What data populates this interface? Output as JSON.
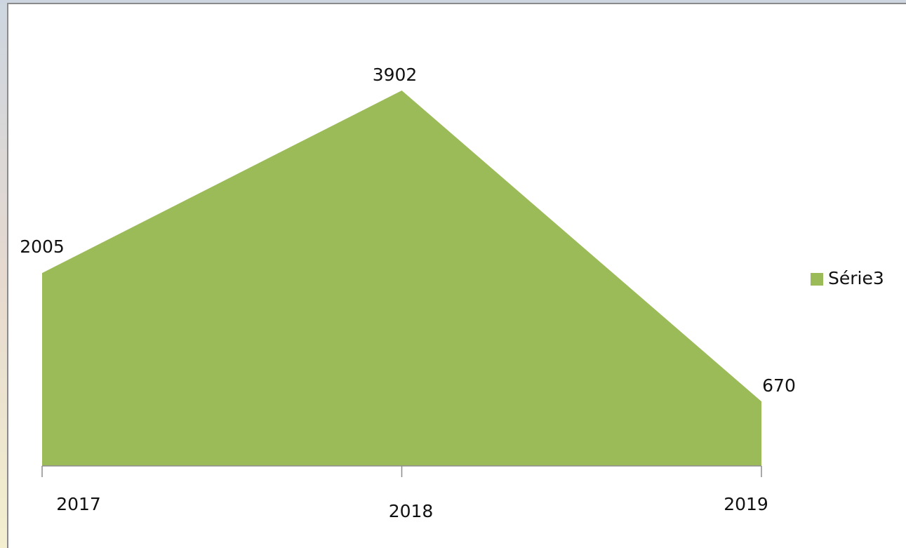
{
  "chart_data": {
    "type": "area",
    "categories": [
      "2017",
      "2018",
      "2019"
    ],
    "series": [
      {
        "name": "Série3",
        "color": "#9bbb59",
        "values": [
          2005,
          3902,
          670
        ]
      }
    ],
    "ylim": [
      0,
      4500
    ],
    "legend": "right"
  }
}
